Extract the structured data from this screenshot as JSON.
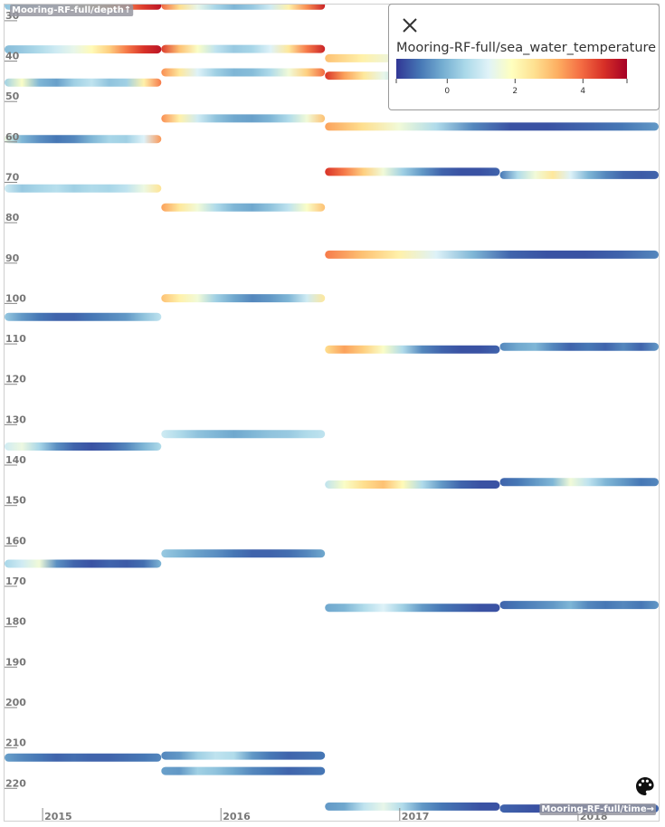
{
  "chart_data": {
    "type": "scatter",
    "title": "",
    "xlabel": "Mooring-RF-full/time→",
    "ylabel": "Mooring-RF-full/depth↑",
    "x_ticks": [
      "2015",
      "2016",
      "2017",
      "2018"
    ],
    "y_ticks": [
      30,
      40,
      50,
      60,
      70,
      80,
      90,
      100,
      110,
      120,
      130,
      140,
      150,
      160,
      170,
      180,
      190,
      200,
      210,
      220
    ],
    "xlim": [
      "2014-10-15",
      "2018-06-15"
    ],
    "ylim": [
      26,
      228
    ],
    "y_inverted": true,
    "color_variable": "Mooring-RF-full/sea_water_temperature",
    "color_range": [
      -1.5,
      5.3
    ],
    "color_ticks": [
      0,
      2,
      4
    ],
    "colormap": [
      "#313695",
      "#4575b4",
      "#74add1",
      "#abd9e9",
      "#e0f3f8",
      "#ffffbf",
      "#fee090",
      "#fdae61",
      "#f46d43",
      "#d73027",
      "#a50026"
    ],
    "legend_placement": "top-right",
    "grid": false,
    "segments": [
      {
        "start": "2014-10-15",
        "end": "2015-09-01",
        "depth": 26.3,
        "temps": [
          0.2,
          0.6,
          0.9,
          1.2,
          1.6,
          2.2,
          3.0,
          3.8,
          4.5,
          5.0
        ]
      },
      {
        "start": "2014-10-15",
        "end": "2015-09-01",
        "depth": 37.1,
        "temps": [
          0.1,
          0.3,
          0.6,
          1.0,
          1.4,
          2.0,
          2.8,
          3.8,
          4.6,
          5.0
        ]
      },
      {
        "start": "2014-10-15",
        "end": "2015-09-01",
        "depth": 45.3,
        "temps": [
          0.4,
          1.8,
          0.0,
          -0.3,
          0.4,
          0.8,
          0.2,
          0.4,
          2.2,
          3.8
        ]
      },
      {
        "start": "2014-10-15",
        "end": "2015-09-01",
        "depth": 59.3,
        "temps": [
          1.5,
          0.0,
          -0.5,
          -0.8,
          -0.6,
          0.0,
          0.5,
          0.4,
          1.2,
          3.5
        ]
      },
      {
        "start": "2014-10-15",
        "end": "2015-09-01",
        "depth": 71.5,
        "temps": [
          1.0,
          0.3,
          0.5,
          0.7,
          0.4,
          0.6,
          0.5,
          0.8,
          1.5,
          2.5
        ]
      },
      {
        "start": "2014-10-15",
        "end": "2015-09-01",
        "depth": 103.3,
        "temps": [
          0.3,
          -0.4,
          -0.8,
          -1.0,
          -1.0,
          -0.8,
          -0.6,
          -0.4,
          0.2,
          0.8
        ]
      },
      {
        "start": "2014-10-15",
        "end": "2015-09-01",
        "depth": 135.4,
        "temps": [
          1.0,
          1.5,
          0.5,
          -0.5,
          -1.0,
          -1.2,
          -1.0,
          -0.6,
          0.0,
          0.6
        ]
      },
      {
        "start": "2014-10-15",
        "end": "2015-09-01",
        "depth": 164.4,
        "temps": [
          0.5,
          1.0,
          1.6,
          -0.5,
          -1.0,
          -1.2,
          -1.0,
          -1.1,
          -0.9,
          0.0
        ]
      },
      {
        "start": "2014-10-15",
        "end": "2015-09-01",
        "depth": 212.4,
        "temps": [
          -0.3,
          -0.6,
          -0.8,
          -1.0,
          -0.9,
          -1.0,
          -1.0,
          -0.9,
          -0.8,
          -0.6
        ]
      },
      {
        "start": "2015-09-01",
        "end": "2016-08-01",
        "depth": 26.3,
        "temps": [
          4.0,
          2.6,
          1.4,
          0.5,
          0.0,
          0.3,
          1.0,
          2.2,
          3.6,
          4.8
        ]
      },
      {
        "start": "2015-09-01",
        "end": "2016-08-01",
        "depth": 37.0,
        "temps": [
          4.5,
          3.0,
          1.8,
          0.8,
          0.3,
          0.5,
          1.2,
          2.4,
          3.8,
          4.8
        ]
      },
      {
        "start": "2015-09-01",
        "end": "2016-08-01",
        "depth": 42.8,
        "temps": [
          3.6,
          2.4,
          1.2,
          0.4,
          0.0,
          0.1,
          0.6,
          1.6,
          2.8,
          4.0
        ]
      },
      {
        "start": "2015-09-01",
        "end": "2016-08-01",
        "depth": 54.2,
        "temps": [
          3.6,
          2.2,
          1.0,
          0.2,
          -0.2,
          -0.3,
          0.0,
          0.6,
          1.6,
          3.0
        ]
      },
      {
        "start": "2015-09-01",
        "end": "2016-08-01",
        "depth": 76.2,
        "temps": [
          3.4,
          2.4,
          1.6,
          0.6,
          0.0,
          -0.2,
          0.2,
          0.8,
          1.8,
          3.0
        ]
      },
      {
        "start": "2015-09-01",
        "end": "2016-08-01",
        "depth": 98.7,
        "temps": [
          3.0,
          2.2,
          1.6,
          0.4,
          -0.2,
          -0.6,
          -0.4,
          0.0,
          1.0,
          2.4
        ]
      },
      {
        "start": "2015-09-01",
        "end": "2016-08-01",
        "depth": 132.3,
        "temps": [
          1.0,
          0.6,
          0.2,
          0.0,
          -0.2,
          0.0,
          0.2,
          0.3,
          0.6,
          0.8
        ]
      },
      {
        "start": "2015-09-01",
        "end": "2016-08-01",
        "depth": 161.9,
        "temps": [
          0.3,
          0.0,
          -0.3,
          -0.5,
          -0.8,
          -1.0,
          -1.0,
          -0.9,
          -0.6,
          -0.2
        ]
      },
      {
        "start": "2015-09-01",
        "end": "2016-08-01",
        "depth": 211.9,
        "temps": [
          -0.6,
          -0.4,
          0.4,
          0.8,
          0.6,
          -0.4,
          -0.8,
          -1.0,
          -0.9,
          -0.8
        ]
      },
      {
        "start": "2015-09-01",
        "end": "2016-08-01",
        "depth": 215.7,
        "temps": [
          -0.3,
          -0.4,
          0.4,
          0.2,
          -0.2,
          -0.6,
          -0.8,
          -1.0,
          -0.9,
          -0.8
        ]
      },
      {
        "start": "2016-08-01",
        "end": "2018-06-15",
        "depth": 39.3,
        "temps": [
          3.0,
          2.2,
          1.4,
          0.8,
          0.4,
          0.6,
          1.2,
          2.0,
          3.0,
          4.0
        ]
      },
      {
        "start": "2016-08-01",
        "end": "2017-07-25",
        "depth": 43.6,
        "temps": [
          4.6,
          3.4,
          2.4,
          1.4,
          0.6,
          0.4,
          0.9,
          1.6,
          2.6,
          3.6
        ]
      },
      {
        "start": "2016-08-01",
        "end": "2018-06-15",
        "depth": 56.2,
        "temps": [
          3.4,
          2.6,
          1.6,
          0.6,
          -0.6,
          -1.2,
          -1.2,
          -1.0,
          -0.8,
          -0.4
        ]
      },
      {
        "start": "2016-08-01",
        "end": "2017-07-25",
        "depth": 67.4,
        "temps": [
          4.6,
          3.8,
          2.8,
          1.6,
          0.4,
          -0.4,
          -1.0,
          -1.2,
          -1.2,
          -1.0
        ]
      },
      {
        "start": "2017-07-25",
        "end": "2018-06-15",
        "depth": 68.2,
        "temps": [
          -0.8,
          0.6,
          1.6,
          2.4,
          1.2,
          0.0,
          -0.6,
          -1.0,
          -1.1,
          -1.0
        ]
      },
      {
        "start": "2016-08-01",
        "end": "2018-06-15",
        "depth": 87.9,
        "temps": [
          3.8,
          3.0,
          2.2,
          1.2,
          0.0,
          -1.0,
          -1.2,
          -1.2,
          -1.0,
          -0.6
        ]
      },
      {
        "start": "2016-08-01",
        "end": "2017-07-25",
        "depth": 111.4,
        "temps": [
          2.6,
          3.4,
          2.8,
          1.8,
          0.6,
          -0.6,
          -1.0,
          -1.2,
          -1.2,
          -1.0
        ]
      },
      {
        "start": "2017-07-25",
        "end": "2018-06-15",
        "depth": 110.7,
        "temps": [
          -0.6,
          -0.2,
          0.0,
          -0.6,
          -1.0,
          -0.8,
          -1.0,
          -0.6,
          -1.0,
          -0.4
        ]
      },
      {
        "start": "2016-08-01",
        "end": "2017-07-25",
        "depth": 144.8,
        "temps": [
          0.8,
          1.8,
          2.6,
          3.0,
          2.0,
          0.6,
          -0.4,
          -1.0,
          -1.2,
          -1.2
        ]
      },
      {
        "start": "2017-07-25",
        "end": "2018-06-15",
        "depth": 144.2,
        "temps": [
          -1.0,
          -0.8,
          -0.4,
          0.0,
          1.6,
          0.8,
          0.0,
          -0.4,
          -0.8,
          -0.6
        ]
      },
      {
        "start": "2016-08-01",
        "end": "2017-07-25",
        "depth": 175.3,
        "temps": [
          -0.2,
          0.0,
          0.6,
          1.2,
          0.4,
          -0.4,
          -0.8,
          -1.0,
          -1.2,
          -1.2
        ]
      },
      {
        "start": "2017-07-25",
        "end": "2018-06-15",
        "depth": 174.6,
        "temps": [
          -1.0,
          -0.8,
          -0.6,
          -0.4,
          0.0,
          -0.6,
          -0.8,
          -0.6,
          -0.8,
          -0.4
        ]
      },
      {
        "start": "2016-08-01",
        "end": "2017-07-25",
        "depth": 224.5,
        "temps": [
          -0.4,
          -0.2,
          0.8,
          1.4,
          0.6,
          -0.4,
          -0.8,
          -1.0,
          -1.2,
          -1.2
        ]
      },
      {
        "start": "2017-07-25",
        "end": "2018-06-15",
        "depth": 225.0,
        "temps": [
          -1.0,
          -1.1,
          -1.2,
          -1.2,
          -1.2,
          -1.1,
          -1.2,
          -1.1,
          -1.0,
          -1.0
        ]
      }
    ]
  },
  "legend": {
    "title": "Mooring-RF-full/sea_water_temperature",
    "close_icon": "close-icon"
  },
  "controls": {
    "palette_icon": "palette-icon"
  }
}
